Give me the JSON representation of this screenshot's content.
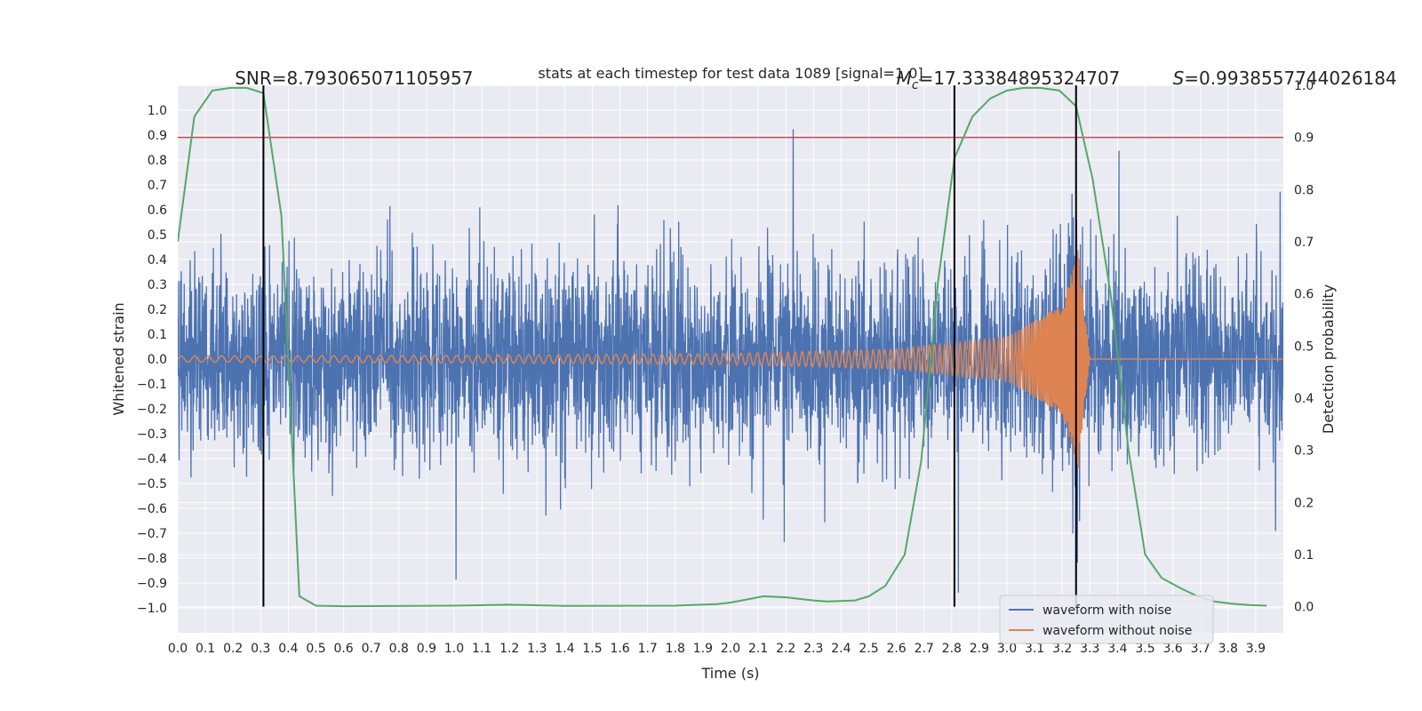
{
  "chart_data": {
    "type": "line",
    "title": "stats at each timestep for test data 1089 [signal=1.0]",
    "xlabel": "Time (s)",
    "ylabel": "Whitened strain",
    "y2label": "Detection probability",
    "xlim": [
      0.0,
      4.0
    ],
    "ylim": [
      -1.1,
      1.1
    ],
    "y2lim": [
      -0.05,
      1.0
    ],
    "x_ticks": [
      0.0,
      0.1,
      0.2,
      0.3,
      0.4,
      0.5,
      0.6,
      0.7,
      0.8,
      0.9,
      1.0,
      1.1,
      1.2,
      1.3,
      1.4,
      1.5,
      1.6,
      1.7,
      1.8,
      1.9,
      2.0,
      2.1,
      2.2,
      2.3,
      2.4,
      2.5,
      2.6,
      2.7,
      2.8,
      2.9,
      3.0,
      3.1,
      3.2,
      3.3,
      3.4,
      3.5,
      3.6,
      3.7,
      3.8,
      3.9
    ],
    "x_tick_labels": [
      "0.0",
      "0.1",
      "0.2",
      "0.3",
      "0.4",
      "0.5",
      "0.6",
      "0.7",
      "0.8",
      "0.9",
      "1.0",
      "1.1",
      "1.2",
      "1.3",
      "1.4",
      "1.5",
      "1.6",
      "1.7",
      "1.8",
      "1.9",
      "2.0",
      "2.1",
      "2.2",
      "2.3",
      "2.4",
      "2.5",
      "2.6",
      "2.7",
      "2.8",
      "2.9",
      "3.0",
      "3.1",
      "3.2",
      "3.3",
      "3.4",
      "3.5",
      "3.6",
      "3.7",
      "3.8",
      "3.9"
    ],
    "y_ticks": [
      1.0,
      0.9,
      0.8,
      0.7,
      0.6,
      0.5,
      0.4,
      0.3,
      0.2,
      0.1,
      0.0,
      -0.1,
      -0.2,
      -0.3,
      -0.4,
      -0.5,
      -0.6,
      -0.7,
      -0.8,
      -0.9,
      -1.0
    ],
    "y_tick_labels": [
      "1.0",
      "0.9",
      "0.8",
      "0.7",
      "0.6",
      "0.5",
      "0.4",
      "0.3",
      "0.2",
      "0.1",
      "0.0",
      "−0.1",
      "−0.2",
      "−0.3",
      "−0.4",
      "−0.5",
      "−0.6",
      "−0.7",
      "−0.8",
      "−0.9",
      "−1.0"
    ],
    "y2_ticks": [
      1.0,
      0.9,
      0.8,
      0.7,
      0.6,
      0.5,
      0.4,
      0.3,
      0.2,
      0.1,
      0.0
    ],
    "y2_tick_labels": [
      "1.0",
      "0.9",
      "0.8",
      "0.7",
      "0.6",
      "0.5",
      "0.4",
      "0.3",
      "0.2",
      "0.1",
      "0.0"
    ],
    "grid": true,
    "legend_position": "lower-right",
    "threshold": {
      "axis": "y2",
      "value": 0.9,
      "color": "#c44e52"
    },
    "vertical_markers": {
      "x": [
        0.31,
        2.81,
        3.25
      ],
      "y2_range": [
        0.0,
        1.0
      ],
      "color": "#000000"
    },
    "annotations": [
      {
        "id": "snr",
        "text": "SNR=8.793065071105957",
        "x": 0.2,
        "y2": 1.0
      },
      {
        "id": "mc",
        "text": "=17.33384895324707",
        "symbol": "M",
        "subscript": "c",
        "x": 2.6,
        "y2": 1.0
      },
      {
        "id": "s",
        "text": "=0.993855774402618​4",
        "symbol": "S",
        "x": 3.6,
        "y2": 1.0
      }
    ],
    "series": [
      {
        "name": "waveform with noise",
        "axis": "y",
        "color": "#4c72b0",
        "description_kind": "noise",
        "sample_rate": 1024,
        "amplitude_std": 0.19
      },
      {
        "name": "waveform without noise",
        "axis": "y",
        "color": "#dd8452",
        "description_kind": "chirp",
        "envelope": {
          "t": [
            0.0,
            1.0,
            2.0,
            2.6,
            3.0,
            3.2,
            3.26,
            3.27,
            3.3
          ],
          "a": [
            0.012,
            0.015,
            0.022,
            0.04,
            0.09,
            0.22,
            0.45,
            0.3,
            0.0
          ]
        },
        "freq": {
          "t": [
            0.0,
            2.0,
            3.0,
            3.25
          ],
          "f": [
            20,
            32,
            60,
            240
          ]
        }
      },
      {
        "name": "",
        "axis": "y2",
        "color": "#55a868",
        "x": [
          0.0,
          0.06,
          0.125,
          0.19,
          0.25,
          0.31,
          0.375,
          0.44,
          0.5,
          0.6,
          1.0,
          1.2,
          1.4,
          1.8,
          1.95,
          2.0,
          2.12,
          2.2,
          2.3,
          2.35,
          2.45,
          2.5,
          2.56,
          2.63,
          2.69,
          2.75,
          2.81,
          2.875,
          2.94,
          3.0,
          3.06,
          3.12,
          3.19,
          3.25,
          3.31,
          3.375,
          3.44,
          3.5,
          3.56,
          3.63,
          3.69,
          3.75,
          3.81,
          3.88,
          3.94
        ],
        "values": [
          0.7,
          0.94,
          0.99,
          0.995,
          0.995,
          0.985,
          0.75,
          0.02,
          0.002,
          0.001,
          0.002,
          0.004,
          0.0015,
          0.002,
          0.005,
          0.008,
          0.02,
          0.018,
          0.012,
          0.01,
          0.012,
          0.02,
          0.04,
          0.1,
          0.28,
          0.62,
          0.86,
          0.94,
          0.975,
          0.99,
          0.995,
          0.995,
          0.99,
          0.96,
          0.82,
          0.6,
          0.3,
          0.1,
          0.055,
          0.035,
          0.02,
          0.01,
          0.006,
          0.003,
          0.002
        ]
      }
    ],
    "legend": [
      {
        "label": "waveform with noise",
        "color": "#4c72b0"
      },
      {
        "label": "waveform without noise",
        "color": "#dd8452"
      }
    ]
  }
}
